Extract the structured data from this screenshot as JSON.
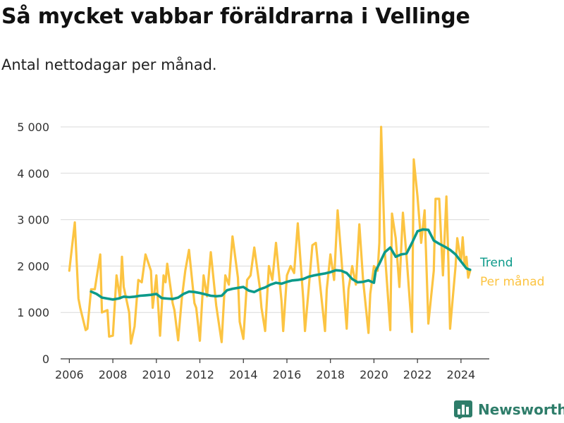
{
  "header": {
    "title": "Så mycket vabbar föräldrarna i Vellinge",
    "subtitle": "Antal nettodagar per månad."
  },
  "brand": {
    "name": "Newsworthy",
    "icon": "bar-chart-logo-icon",
    "color": "#2e7d6a"
  },
  "chart_data": {
    "type": "line",
    "title": "Så mycket vabbar föräldrarna i Vellinge",
    "subtitle": "Antal nettodagar per månad.",
    "xlabel": "",
    "ylabel": "",
    "xlim": [
      2005.6,
      2025.3
    ],
    "ylim": [
      0,
      5000
    ],
    "x_ticks": [
      2006,
      2008,
      2010,
      2012,
      2014,
      2016,
      2018,
      2020,
      2022,
      2024
    ],
    "y_ticks": [
      0,
      1000,
      2000,
      3000,
      4000,
      5000
    ],
    "y_tick_labels": [
      "0",
      "1 000",
      "2 000",
      "3 000",
      "4 000",
      "5 000"
    ],
    "grid": "horizontal",
    "legend": "right-end labels",
    "series": [
      {
        "name": "Per månad",
        "color": "#fcc442",
        "x": [
          2006.0,
          2006.25,
          2006.42,
          2006.5,
          2006.75,
          2006.83,
          2007.0,
          2007.17,
          2007.42,
          2007.5,
          2007.75,
          2007.83,
          2008.0,
          2008.17,
          2008.33,
          2008.42,
          2008.5,
          2008.75,
          2008.83,
          2009.0,
          2009.17,
          2009.33,
          2009.5,
          2009.75,
          2009.83,
          2010.0,
          2010.17,
          2010.33,
          2010.42,
          2010.5,
          2010.75,
          2010.83,
          2011.0,
          2011.17,
          2011.33,
          2011.5,
          2011.75,
          2011.83,
          2012.0,
          2012.17,
          2012.33,
          2012.5,
          2012.75,
          2012.83,
          2013.0,
          2013.17,
          2013.33,
          2013.5,
          2013.75,
          2013.83,
          2014.0,
          2014.17,
          2014.33,
          2014.5,
          2014.75,
          2014.83,
          2015.0,
          2015.17,
          2015.33,
          2015.5,
          2015.75,
          2015.83,
          2016.0,
          2016.17,
          2016.33,
          2016.5,
          2016.75,
          2016.83,
          2017.0,
          2017.17,
          2017.33,
          2017.5,
          2017.75,
          2017.83,
          2018.0,
          2018.17,
          2018.33,
          2018.5,
          2018.75,
          2018.83,
          2019.0,
          2019.17,
          2019.33,
          2019.5,
          2019.75,
          2019.83,
          2020.0,
          2020.17,
          2020.25,
          2020.33,
          2020.5,
          2020.75,
          2020.83,
          2021.0,
          2021.17,
          2021.33,
          2021.5,
          2021.75,
          2021.83,
          2022.0,
          2022.17,
          2022.33,
          2022.5,
          2022.75,
          2022.83,
          2023.0,
          2023.17,
          2023.33,
          2023.42,
          2023.5,
          2023.75,
          2023.83,
          2024.0,
          2024.08,
          2024.17,
          2024.25,
          2024.33,
          2024.42
        ],
        "values": [
          1900,
          2940,
          1300,
          1100,
          620,
          650,
          1500,
          1500,
          2250,
          1000,
          1050,
          480,
          500,
          1800,
          1300,
          2200,
          1550,
          1000,
          330,
          700,
          1700,
          1650,
          2250,
          1900,
          1100,
          1800,
          500,
          1800,
          1650,
          2050,
          1200,
          1050,
          400,
          1300,
          1900,
          2350,
          1200,
          1100,
          390,
          1800,
          1350,
          2300,
          1150,
          900,
          360,
          1800,
          1600,
          2640,
          1750,
          800,
          430,
          1700,
          1800,
          2400,
          1550,
          1100,
          600,
          2000,
          1700,
          2500,
          1250,
          600,
          1800,
          2000,
          1850,
          2920,
          1300,
          600,
          1500,
          2450,
          2500,
          1700,
          600,
          1500,
          2250,
          1700,
          3200,
          2200,
          650,
          1500,
          2000,
          1600,
          2900,
          1700,
          560,
          1400,
          2000,
          1900,
          2500,
          5000,
          2300,
          620,
          3130,
          2600,
          1550,
          3150,
          2200,
          580,
          4300,
          3500,
          2500,
          3200,
          760,
          1900,
          3450,
          3450,
          1800,
          3500,
          2100,
          650,
          2000,
          2600,
          2100,
          2620,
          2000,
          2200,
          1750,
          1900
        ]
      },
      {
        "name": "Trend",
        "color": "#0c9a8a",
        "x": [
          2007.0,
          2007.25,
          2007.5,
          2007.75,
          2008.0,
          2008.25,
          2008.5,
          2008.75,
          2009.0,
          2009.25,
          2009.5,
          2009.75,
          2010.0,
          2010.25,
          2010.5,
          2010.75,
          2011.0,
          2011.25,
          2011.5,
          2011.75,
          2012.0,
          2012.25,
          2012.5,
          2012.75,
          2013.0,
          2013.25,
          2013.5,
          2013.75,
          2014.0,
          2014.25,
          2014.5,
          2014.75,
          2015.0,
          2015.25,
          2015.5,
          2015.75,
          2016.0,
          2016.25,
          2016.5,
          2016.75,
          2017.0,
          2017.25,
          2017.5,
          2017.75,
          2018.0,
          2018.25,
          2018.5,
          2018.75,
          2019.0,
          2019.25,
          2019.5,
          2019.75,
          2020.0,
          2020.08,
          2020.25,
          2020.5,
          2020.75,
          2021.0,
          2021.25,
          2021.5,
          2021.75,
          2022.0,
          2022.25,
          2022.5,
          2022.75,
          2023.0,
          2023.25,
          2023.5,
          2023.75,
          2024.0,
          2024.25,
          2024.42
        ],
        "values": [
          1450,
          1400,
          1320,
          1300,
          1280,
          1300,
          1340,
          1330,
          1340,
          1360,
          1370,
          1380,
          1400,
          1310,
          1300,
          1290,
          1320,
          1400,
          1450,
          1440,
          1420,
          1390,
          1360,
          1350,
          1360,
          1480,
          1510,
          1530,
          1550,
          1470,
          1440,
          1500,
          1540,
          1600,
          1640,
          1620,
          1660,
          1690,
          1700,
          1720,
          1770,
          1800,
          1820,
          1840,
          1870,
          1910,
          1900,
          1850,
          1720,
          1650,
          1660,
          1690,
          1640,
          1900,
          2050,
          2300,
          2400,
          2200,
          2250,
          2270,
          2500,
          2750,
          2790,
          2780,
          2550,
          2480,
          2420,
          2350,
          2250,
          2100,
          1950,
          1920
        ]
      }
    ]
  }
}
